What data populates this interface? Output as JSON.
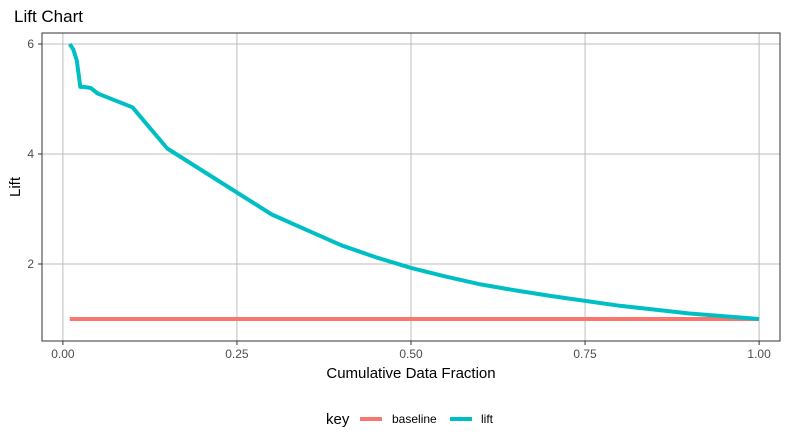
{
  "chart_data": {
    "type": "line",
    "title": "Lift Chart",
    "xlabel": "Cumulative Data Fraction",
    "ylabel": "Lift",
    "xlim": [
      -0.03,
      1.03
    ],
    "ylim": [
      0.6,
      6.2
    ],
    "x_ticks": [
      0,
      0.25,
      0.5,
      0.75,
      1
    ],
    "x_tick_labels": [
      "0.00",
      "0.25",
      "0.50",
      "0.75",
      "1.00"
    ],
    "y_ticks": [
      2,
      4,
      6
    ],
    "y_tick_labels": [
      "2",
      "4",
      "6"
    ],
    "grid": true,
    "legend": {
      "title": "key",
      "position": "bottom",
      "entries": [
        "baseline",
        "lift"
      ]
    },
    "series": [
      {
        "name": "baseline",
        "color": "#F8766D",
        "x": [
          0.01,
          1.0
        ],
        "y": [
          1.0,
          1.0
        ]
      },
      {
        "name": "lift",
        "color": "#00BFC4",
        "x": [
          0.01,
          0.015,
          0.02,
          0.025,
          0.03,
          0.04,
          0.05,
          0.06,
          0.08,
          0.1,
          0.12,
          0.15,
          0.2,
          0.25,
          0.3,
          0.35,
          0.4,
          0.45,
          0.5,
          0.55,
          0.6,
          0.65,
          0.7,
          0.75,
          0.8,
          0.85,
          0.9,
          0.95,
          1.0
        ],
        "y": [
          6.0,
          5.9,
          5.7,
          5.22,
          5.22,
          5.2,
          5.1,
          5.05,
          4.95,
          4.85,
          4.55,
          4.1,
          3.7,
          3.3,
          2.9,
          2.62,
          2.34,
          2.12,
          1.93,
          1.77,
          1.63,
          1.52,
          1.42,
          1.33,
          1.24,
          1.17,
          1.1,
          1.05,
          1.0
        ]
      }
    ]
  }
}
